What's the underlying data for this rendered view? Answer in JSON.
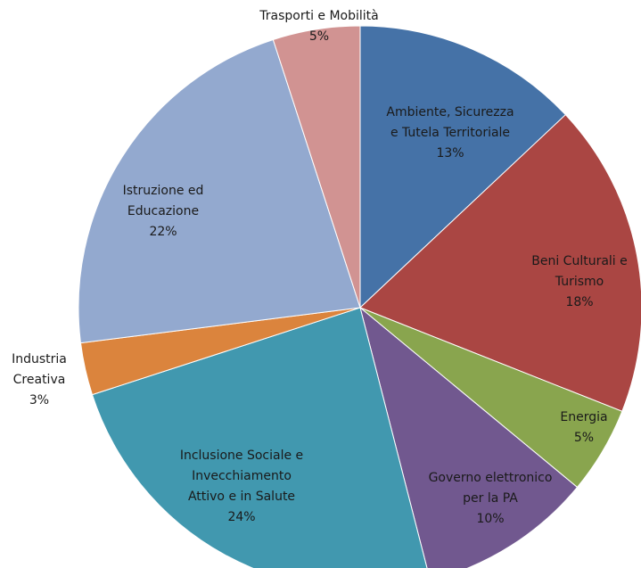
{
  "chart_data": {
    "type": "pie",
    "start_angle_deg": 0,
    "direction": "clockwise",
    "slices": [
      {
        "key": "ambiente",
        "lines": [
          "Ambiente, Sicurezza",
          "e Tutela Territoriale"
        ],
        "percent_label": "13%",
        "value": 13,
        "color": "#4572A7"
      },
      {
        "key": "beni-culturali",
        "lines": [
          "Beni Culturali e",
          "Turismo"
        ],
        "percent_label": "18%",
        "value": 18,
        "color": "#AA4643"
      },
      {
        "key": "energia",
        "lines": [
          "Energia"
        ],
        "percent_label": "5%",
        "value": 5,
        "color": "#89A54E"
      },
      {
        "key": "governo",
        "lines": [
          "Governo elettronico",
          "per la PA"
        ],
        "percent_label": "10%",
        "value": 10,
        "color": "#71588F"
      },
      {
        "key": "inclusione",
        "lines": [
          "Inclusione Sociale e",
          "Invecchiamento",
          "Attivo e in Salute"
        ],
        "percent_label": "24%",
        "value": 24,
        "color": "#4198AF"
      },
      {
        "key": "industria",
        "lines": [
          "Industria",
          "Creativa"
        ],
        "percent_label": "3%",
        "value": 3,
        "color": "#DB843D"
      },
      {
        "key": "istruzione",
        "lines": [
          "Istruzione ed",
          "Educazione"
        ],
        "percent_label": "22%",
        "value": 22,
        "color": "#93A9CF"
      },
      {
        "key": "trasporti",
        "lines": [
          "Trasporti e Mobilità"
        ],
        "percent_label": "5%",
        "value": 5,
        "color": "#D19392"
      }
    ]
  }
}
